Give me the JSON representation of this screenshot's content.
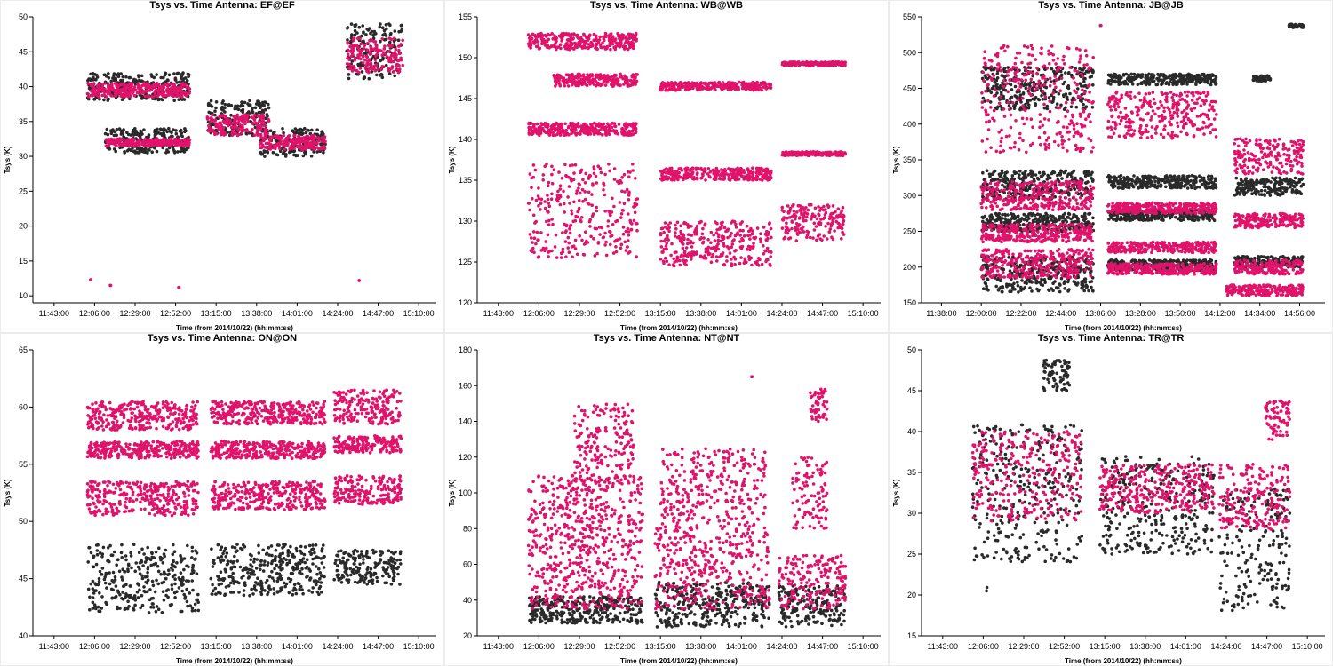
{
  "colors": {
    "pol1": "#2a2a2a",
    "pol2": "#e0136b",
    "panel_bg": "#ffffff",
    "page_bg": "#ececec"
  },
  "chart_data": [
    {
      "type": "scatter",
      "title": "Tsys vs. Time Antenna: EF@EF",
      "xlabel": "Time (from 2014/10/22) (hh:mm:ss)",
      "ylabel": "Tsys (K)",
      "x_ticks": [
        "11:43:00",
        "12:06:00",
        "12:29:00",
        "12:52:00",
        "13:15:00",
        "13:38:00",
        "14:01:00",
        "14:24:00",
        "14:47:00",
        "15:10:00"
      ],
      "xlim": [
        "11:31:00",
        "15:20:00"
      ],
      "y_ticks": [
        10,
        15,
        20,
        25,
        30,
        35,
        40,
        45,
        50
      ],
      "ylim": [
        9,
        50
      ],
      "grid": false,
      "series": [
        {
          "color": "#2a2a2a",
          "clusters": [
            {
              "t0": "12:02:00",
              "t1": "13:00:00",
              "ymin": 38,
              "ymax": 42
            },
            {
              "t0": "12:12:00",
              "t1": "13:00:00",
              "ymin": 30.5,
              "ymax": 34
            },
            {
              "t0": "13:10:00",
              "t1": "13:45:00",
              "ymin": 33,
              "ymax": 38
            },
            {
              "t0": "13:40:00",
              "t1": "14:17:00",
              "ymin": 30,
              "ymax": 34
            },
            {
              "t0": "14:29:00",
              "t1": "15:01:00",
              "ymin": 41,
              "ymax": 49
            }
          ]
        },
        {
          "color": "#e0136b",
          "clusters": [
            {
              "t0": "12:02:00",
              "t1": "13:00:00",
              "ymin": 38.5,
              "ymax": 40.5
            },
            {
              "t0": "12:12:00",
              "t1": "13:00:00",
              "ymin": 31.5,
              "ymax": 32.5
            },
            {
              "t0": "13:10:00",
              "t1": "13:45:00",
              "ymin": 33,
              "ymax": 36
            },
            {
              "t0": "13:40:00",
              "t1": "14:17:00",
              "ymin": 31,
              "ymax": 33
            },
            {
              "t0": "14:29:00",
              "t1": "15:01:00",
              "ymin": 42,
              "ymax": 47
            },
            {
              "t0": "12:04:00",
              "t1": "12:04:00",
              "ymin": 12.3,
              "ymax": 12.3
            },
            {
              "t0": "12:15:00",
              "t1": "12:15:00",
              "ymin": 11.5,
              "ymax": 11.5
            },
            {
              "t0": "12:54:00",
              "t1": "12:54:00",
              "ymin": 11.2,
              "ymax": 11.2
            },
            {
              "t0": "14:36:00",
              "t1": "14:36:00",
              "ymin": 12.2,
              "ymax": 12.2
            }
          ]
        }
      ]
    },
    {
      "type": "scatter",
      "title": "Tsys vs. Time Antenna: WB@WB",
      "xlabel": "Time (from 2014/10/22) (hh:mm:ss)",
      "ylabel": "Tsys (K)",
      "x_ticks": [
        "11:43:00",
        "12:06:00",
        "12:29:00",
        "12:52:00",
        "13:15:00",
        "13:38:00",
        "14:01:00",
        "14:24:00",
        "14:47:00",
        "15:10:00"
      ],
      "xlim": [
        "11:31:00",
        "15:20:00"
      ],
      "y_ticks": [
        120,
        125,
        130,
        135,
        140,
        145,
        150,
        155
      ],
      "ylim": [
        120,
        155
      ],
      "grid": false,
      "series": [
        {
          "color": "#e0136b",
          "clusters": [
            {
              "t0": "12:00:00",
              "t1": "13:02:00",
              "ymin": 151,
              "ymax": 153
            },
            {
              "t0": "12:14:00",
              "t1": "13:02:00",
              "ymin": 146.5,
              "ymax": 148
            },
            {
              "t0": "12:00:00",
              "t1": "13:02:00",
              "ymin": 140.5,
              "ymax": 142
            },
            {
              "t0": "12:00:00",
              "t1": "13:02:00",
              "ymin": 125.5,
              "ymax": 137
            },
            {
              "t0": "13:15:00",
              "t1": "14:18:00",
              "ymin": 146,
              "ymax": 147
            },
            {
              "t0": "13:15:00",
              "t1": "14:18:00",
              "ymin": 135,
              "ymax": 136.5
            },
            {
              "t0": "13:15:00",
              "t1": "14:18:00",
              "ymin": 124.5,
              "ymax": 130
            },
            {
              "t0": "14:24:00",
              "t1": "15:00:00",
              "ymin": 149,
              "ymax": 149.5
            },
            {
              "t0": "14:24:00",
              "t1": "15:00:00",
              "ymin": 138,
              "ymax": 138.5
            },
            {
              "t0": "14:24:00",
              "t1": "15:00:00",
              "ymin": 127.5,
              "ymax": 132
            }
          ]
        }
      ]
    },
    {
      "type": "scatter",
      "title": "Tsys vs. Time Antenna: JB@JB",
      "xlabel": "Time (from 2014/10/22) (hh:mm:ss)",
      "ylabel": "Tsys (K)",
      "x_ticks": [
        "11:38:00",
        "12:00:00",
        "12:22:00",
        "12:44:00",
        "13:06:00",
        "13:28:00",
        "13:50:00",
        "14:12:00",
        "14:34:00",
        "14:56:00"
      ],
      "xlim": [
        "11:27:00",
        "15:10:00"
      ],
      "y_ticks": [
        150,
        200,
        250,
        300,
        350,
        400,
        450,
        500,
        550
      ],
      "ylim": [
        150,
        550
      ],
      "grid": false,
      "series": [
        {
          "color": "#2a2a2a",
          "clusters": [
            {
              "t0": "12:00:00",
              "t1": "13:02:00",
              "ymin": 165,
              "ymax": 215
            },
            {
              "t0": "12:00:00",
              "t1": "13:02:00",
              "ymin": 250,
              "ymax": 275
            },
            {
              "t0": "12:00:00",
              "t1": "13:02:00",
              "ymin": 295,
              "ymax": 335
            },
            {
              "t0": "12:00:00",
              "t1": "13:02:00",
              "ymin": 420,
              "ymax": 480
            },
            {
              "t0": "13:10:00",
              "t1": "14:10:00",
              "ymin": 195,
              "ymax": 210
            },
            {
              "t0": "13:10:00",
              "t1": "14:10:00",
              "ymin": 265,
              "ymax": 280
            },
            {
              "t0": "13:10:00",
              "t1": "14:10:00",
              "ymin": 310,
              "ymax": 328
            },
            {
              "t0": "13:10:00",
              "t1": "14:10:00",
              "ymin": 455,
              "ymax": 470
            },
            {
              "t0": "14:20:00",
              "t1": "14:58:00",
              "ymin": 200,
              "ymax": 215
            },
            {
              "t0": "14:20:00",
              "t1": "14:58:00",
              "ymin": 300,
              "ymax": 325
            },
            {
              "t0": "14:30:00",
              "t1": "14:40:00",
              "ymin": 460,
              "ymax": 468
            },
            {
              "t0": "14:50:00",
              "t1": "14:58:00",
              "ymin": 535,
              "ymax": 540
            }
          ]
        },
        {
          "color": "#e0136b",
          "clusters": [
            {
              "t0": "12:00:00",
              "t1": "13:02:00",
              "ymin": 185,
              "ymax": 225
            },
            {
              "t0": "12:00:00",
              "t1": "13:02:00",
              "ymin": 235,
              "ymax": 260
            },
            {
              "t0": "12:00:00",
              "t1": "13:02:00",
              "ymin": 280,
              "ymax": 320
            },
            {
              "t0": "12:00:00",
              "t1": "13:02:00",
              "ymin": 360,
              "ymax": 510
            },
            {
              "t0": "13:10:00",
              "t1": "14:10:00",
              "ymin": 190,
              "ymax": 205
            },
            {
              "t0": "13:10:00",
              "t1": "14:10:00",
              "ymin": 220,
              "ymax": 235
            },
            {
              "t0": "13:10:00",
              "t1": "14:10:00",
              "ymin": 275,
              "ymax": 290
            },
            {
              "t0": "13:10:00",
              "t1": "14:10:00",
              "ymin": 380,
              "ymax": 445
            },
            {
              "t0": "14:15:00",
              "t1": "14:58:00",
              "ymin": 160,
              "ymax": 175
            },
            {
              "t0": "14:20:00",
              "t1": "14:58:00",
              "ymin": 190,
              "ymax": 210
            },
            {
              "t0": "14:20:00",
              "t1": "14:58:00",
              "ymin": 255,
              "ymax": 275
            },
            {
              "t0": "14:20:00",
              "t1": "14:58:00",
              "ymin": 330,
              "ymax": 380
            },
            {
              "t0": "13:06:00",
              "t1": "13:06:00",
              "ymin": 538,
              "ymax": 538
            }
          ]
        }
      ]
    },
    {
      "type": "scatter",
      "title": "Tsys vs. Time Antenna: ON@ON",
      "xlabel": "Time (from 2014/10/22) (hh:mm:ss)",
      "ylabel": "Tsys (K)",
      "x_ticks": [
        "11:43:00",
        "12:06:00",
        "12:29:00",
        "12:52:00",
        "13:15:00",
        "13:38:00",
        "14:01:00",
        "14:24:00",
        "14:47:00",
        "15:10:00"
      ],
      "xlim": [
        "11:31:00",
        "15:20:00"
      ],
      "y_ticks": [
        40,
        45,
        50,
        55,
        60,
        65
      ],
      "ylim": [
        40,
        65
      ],
      "grid": false,
      "series": [
        {
          "color": "#2a2a2a",
          "clusters": [
            {
              "t0": "12:02:00",
              "t1": "13:05:00",
              "ymin": 42,
              "ymax": 48
            },
            {
              "t0": "13:12:00",
              "t1": "14:17:00",
              "ymin": 43.5,
              "ymax": 48
            },
            {
              "t0": "14:22:00",
              "t1": "15:00:00",
              "ymin": 44.5,
              "ymax": 47.5
            }
          ]
        },
        {
          "color": "#e0136b",
          "clusters": [
            {
              "t0": "12:02:00",
              "t1": "13:05:00",
              "ymin": 58,
              "ymax": 60.5
            },
            {
              "t0": "12:02:00",
              "t1": "13:05:00",
              "ymin": 55.5,
              "ymax": 57
            },
            {
              "t0": "12:02:00",
              "t1": "13:05:00",
              "ymin": 50.5,
              "ymax": 53.5
            },
            {
              "t0": "13:12:00",
              "t1": "14:17:00",
              "ymin": 58.5,
              "ymax": 60.5
            },
            {
              "t0": "13:12:00",
              "t1": "14:17:00",
              "ymin": 55.5,
              "ymax": 57
            },
            {
              "t0": "13:12:00",
              "t1": "14:17:00",
              "ymin": 51,
              "ymax": 53.5
            },
            {
              "t0": "14:22:00",
              "t1": "15:00:00",
              "ymin": 58.5,
              "ymax": 61.5
            },
            {
              "t0": "14:22:00",
              "t1": "15:00:00",
              "ymin": 56,
              "ymax": 57.5
            },
            {
              "t0": "14:22:00",
              "t1": "15:00:00",
              "ymin": 51.5,
              "ymax": 54
            }
          ]
        }
      ]
    },
    {
      "type": "scatter",
      "title": "Tsys vs. Time Antenna: NT@NT",
      "xlabel": "Time (from 2014/10/22) (hh:mm:ss)",
      "ylabel": "Tsys (K)",
      "x_ticks": [
        "11:43:00",
        "12:06:00",
        "12:29:00",
        "12:52:00",
        "13:15:00",
        "13:38:00",
        "14:01:00",
        "14:24:00",
        "14:47:00",
        "15:10:00"
      ],
      "xlim": [
        "11:31:00",
        "15:20:00"
      ],
      "y_ticks": [
        20,
        40,
        60,
        80,
        100,
        120,
        140,
        160,
        180
      ],
      "ylim": [
        20,
        180
      ],
      "grid": false,
      "series": [
        {
          "color": "#2a2a2a",
          "clusters": [
            {
              "t0": "12:00:00",
              "t1": "13:05:00",
              "ymin": 27,
              "ymax": 42
            },
            {
              "t0": "13:12:00",
              "t1": "14:17:00",
              "ymin": 25,
              "ymax": 50
            },
            {
              "t0": "14:22:00",
              "t1": "15:00:00",
              "ymin": 25,
              "ymax": 48
            }
          ]
        },
        {
          "color": "#e0136b",
          "clusters": [
            {
              "t0": "12:00:00",
              "t1": "13:05:00",
              "ymin": 35,
              "ymax": 75
            },
            {
              "t0": "12:00:00",
              "t1": "13:05:00",
              "ymin": 75,
              "ymax": 110
            },
            {
              "t0": "12:26:00",
              "t1": "13:00:00",
              "ymin": 110,
              "ymax": 150
            },
            {
              "t0": "13:12:00",
              "t1": "14:17:00",
              "ymin": 35,
              "ymax": 80
            },
            {
              "t0": "13:15:00",
              "t1": "14:15:00",
              "ymin": 80,
              "ymax": 125
            },
            {
              "t0": "14:07:00",
              "t1": "14:07:00",
              "ymin": 165,
              "ymax": 165
            },
            {
              "t0": "14:22:00",
              "t1": "15:00:00",
              "ymin": 35,
              "ymax": 65
            },
            {
              "t0": "14:30:00",
              "t1": "14:50:00",
              "ymin": 80,
              "ymax": 120
            },
            {
              "t0": "14:40:00",
              "t1": "14:50:00",
              "ymin": 140,
              "ymax": 158
            }
          ]
        }
      ]
    },
    {
      "type": "scatter",
      "title": "Tsys vs. Time Antenna: TR@TR",
      "xlabel": "Time (from 2014/10/22) (hh:mm:ss)",
      "ylabel": "Tsys (K)",
      "x_ticks": [
        "11:43:00",
        "12:06:00",
        "12:29:00",
        "12:52:00",
        "13:15:00",
        "13:38:00",
        "14:01:00",
        "14:24:00",
        "14:47:00",
        "15:10:00"
      ],
      "xlim": [
        "11:31:00",
        "15:20:00"
      ],
      "y_ticks": [
        15,
        20,
        25,
        30,
        35,
        40,
        45,
        50
      ],
      "ylim": [
        15,
        50
      ],
      "grid": false,
      "series": [
        {
          "color": "#2a2a2a",
          "clusters": [
            {
              "t0": "12:00:00",
              "t1": "13:02:00",
              "ymin": 24,
              "ymax": 41
            },
            {
              "t0": "12:08:00",
              "t1": "12:08:00",
              "ymin": 20,
              "ymax": 21
            },
            {
              "t0": "13:12:00",
              "t1": "14:17:00",
              "ymin": 25,
              "ymax": 37
            },
            {
              "t0": "14:20:00",
              "t1": "15:00:00",
              "ymin": 18,
              "ymax": 33
            },
            {
              "t0": "12:40:00",
              "t1": "12:55:00",
              "ymin": 45,
              "ymax": 49
            }
          ]
        },
        {
          "color": "#e0136b",
          "clusters": [
            {
              "t0": "12:00:00",
              "t1": "13:02:00",
              "ymin": 29,
              "ymax": 40
            },
            {
              "t0": "13:12:00",
              "t1": "14:17:00",
              "ymin": 30,
              "ymax": 36
            },
            {
              "t0": "14:20:00",
              "t1": "15:00:00",
              "ymin": 28,
              "ymax": 36
            },
            {
              "t0": "14:46:00",
              "t1": "15:00:00",
              "ymin": 39,
              "ymax": 44
            }
          ]
        }
      ]
    }
  ]
}
